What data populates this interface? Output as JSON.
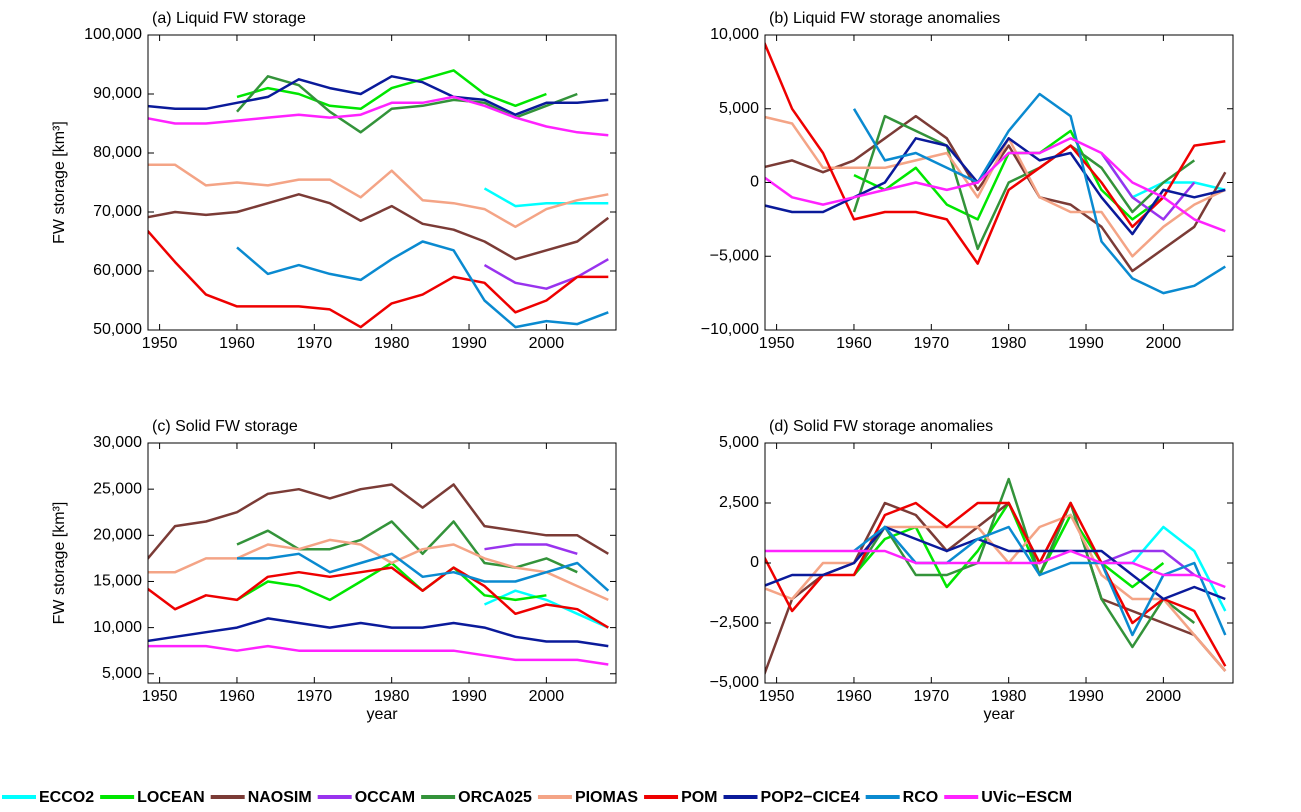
{
  "chart_data": [
    {
      "type": "line",
      "title": "(a) Liquid FW storage",
      "ylabel": "FW storage [km³]",
      "x": [
        1948,
        1952,
        1956,
        1960,
        1964,
        1968,
        1972,
        1976,
        1980,
        1984,
        1988,
        1992,
        1996,
        2000,
        2004,
        2008
      ],
      "xlim": [
        1948.5,
        2009
      ],
      "xticks": [
        1950,
        1960,
        1970,
        1980,
        1990,
        2000
      ],
      "ylim": [
        50000,
        100000
      ],
      "yticks": [
        {
          "value": 50000,
          "label": "50,000"
        },
        {
          "value": 60000,
          "label": "60,000"
        },
        {
          "value": 70000,
          "label": "70,000"
        },
        {
          "value": 80000,
          "label": "80,000"
        },
        {
          "value": 90000,
          "label": "90,000"
        },
        {
          "value": 100000,
          "label": "100,000"
        }
      ],
      "series": [
        {
          "values": [
            null,
            null,
            null,
            null,
            null,
            null,
            null,
            null,
            null,
            null,
            null,
            74000,
            71000,
            71500,
            71500,
            71500
          ]
        },
        {
          "values": [
            null,
            null,
            null,
            89500,
            91000,
            90000,
            88000,
            87500,
            91000,
            92500,
            94000,
            90000,
            88000,
            90000,
            null,
            null
          ]
        },
        {
          "values": [
            69000,
            70000,
            69500,
            70000,
            71500,
            73000,
            71500,
            68500,
            71000,
            68000,
            67000,
            65000,
            62000,
            63500,
            65000,
            69000
          ]
        },
        {
          "values": [
            null,
            null,
            null,
            null,
            null,
            null,
            null,
            null,
            null,
            null,
            null,
            61000,
            58000,
            57000,
            59000,
            62000
          ]
        },
        {
          "values": [
            null,
            null,
            null,
            87000,
            93000,
            91500,
            87000,
            83500,
            87500,
            88000,
            89000,
            88500,
            86000,
            88000,
            90000,
            null
          ]
        },
        {
          "values": [
            78000,
            78000,
            74500,
            75000,
            74500,
            75500,
            75500,
            72500,
            77000,
            72000,
            71500,
            70500,
            67500,
            70500,
            72000,
            73000
          ]
        },
        {
          "values": [
            67500,
            61500,
            56000,
            54000,
            54000,
            54000,
            53500,
            50500,
            54500,
            56000,
            59000,
            58000,
            53000,
            55000,
            59000,
            59000
          ]
        },
        {
          "values": [
            88000,
            87500,
            87500,
            88500,
            89500,
            92500,
            91000,
            90000,
            93000,
            92000,
            89500,
            89000,
            86500,
            88500,
            88500,
            89000
          ]
        },
        {
          "values": [
            null,
            null,
            null,
            64000,
            59500,
            61000,
            59500,
            58500,
            62000,
            65000,
            63500,
            55000,
            50500,
            51500,
            51000,
            53000
          ]
        },
        {
          "values": [
            86000,
            85000,
            85000,
            85500,
            86000,
            86500,
            86000,
            86500,
            88500,
            88500,
            89500,
            88000,
            86000,
            84500,
            83500,
            83000
          ]
        }
      ]
    },
    {
      "type": "line",
      "title": "(b) Liquid FW storage anomalies",
      "x": [
        1948,
        1952,
        1956,
        1960,
        1964,
        1968,
        1972,
        1976,
        1980,
        1984,
        1988,
        1992,
        1996,
        2000,
        2004,
        2008
      ],
      "xlim": [
        1948.5,
        2009
      ],
      "xticks": [
        1950,
        1960,
        1970,
        1980,
        1990,
        2000
      ],
      "ylim": [
        -10000,
        10000
      ],
      "yticks": [
        {
          "value": -10000,
          "label": "−10,000"
        },
        {
          "value": -5000,
          "label": "−5,000"
        },
        0,
        {
          "value": 5000,
          "label": "5,000"
        },
        {
          "value": 10000,
          "label": "10,000"
        }
      ],
      "series": [
        {
          "values": [
            null,
            null,
            null,
            null,
            null,
            null,
            null,
            null,
            null,
            null,
            null,
            2000,
            -1000,
            0,
            0,
            -500
          ]
        },
        {
          "values": [
            null,
            null,
            null,
            500,
            -500,
            1000,
            -1500,
            -2500,
            2000,
            2000,
            3500,
            -500,
            -2500,
            -1000,
            null,
            null
          ]
        },
        {
          "values": [
            1000,
            1500,
            700,
            1500,
            3000,
            4500,
            3000,
            -500,
            2500,
            -1000,
            -1500,
            -3000,
            -6000,
            -4500,
            -3000,
            700
          ]
        },
        {
          "values": [
            null,
            null,
            null,
            null,
            null,
            null,
            null,
            null,
            null,
            null,
            null,
            2000,
            -1000,
            -2500,
            0,
            null
          ]
        },
        {
          "values": [
            null,
            null,
            null,
            -2000,
            4500,
            3500,
            2500,
            -4500,
            0,
            1000,
            2500,
            1000,
            -2000,
            0,
            1500,
            null
          ]
        },
        {
          "values": [
            4500,
            4000,
            1000,
            1000,
            1000,
            1500,
            2000,
            -1000,
            3000,
            -1000,
            -2000,
            -2000,
            -5000,
            -3000,
            -1500,
            -500
          ]
        },
        {
          "values": [
            10000,
            5000,
            2000,
            -2500,
            -2000,
            -2000,
            -2500,
            -5500,
            -500,
            1000,
            2500,
            0,
            -3000,
            -1000,
            2500,
            2800
          ]
        },
        {
          "values": [
            -1500,
            -2000,
            -2000,
            -1000,
            0,
            3000,
            2500,
            0,
            3000,
            1500,
            2000,
            -1000,
            -3500,
            -500,
            -1000,
            -500
          ]
        },
        {
          "values": [
            null,
            null,
            null,
            5000,
            1500,
            2000,
            1000,
            0,
            3500,
            6000,
            4500,
            -4000,
            -6500,
            -7500,
            -7000,
            -5700
          ]
        },
        {
          "values": [
            500,
            -1000,
            -1500,
            -1000,
            -500,
            0,
            -500,
            0,
            2000,
            2000,
            3000,
            2000,
            0,
            -1000,
            -2500,
            -3300
          ]
        }
      ]
    },
    {
      "type": "line",
      "title": "(c) Solid FW storage",
      "ylabel": "FW storage [km³]",
      "xlabel": "year",
      "x": [
        1948,
        1952,
        1956,
        1960,
        1964,
        1968,
        1972,
        1976,
        1980,
        1984,
        1988,
        1992,
        1996,
        2000,
        2004,
        2008
      ],
      "xlim": [
        1948.5,
        2009
      ],
      "xticks": [
        1950,
        1960,
        1970,
        1980,
        1990,
        2000
      ],
      "ylim": [
        4000,
        30000
      ],
      "yticks": [
        {
          "value": 5000,
          "label": "5,000"
        },
        {
          "value": 10000,
          "label": "10,000"
        },
        {
          "value": 15000,
          "label": "15,000"
        },
        {
          "value": 20000,
          "label": "20,000"
        },
        {
          "value": 25000,
          "label": "25,000"
        },
        {
          "value": 30000,
          "label": "30,000"
        }
      ],
      "series": [
        {
          "values": [
            null,
            null,
            null,
            null,
            null,
            null,
            null,
            null,
            null,
            null,
            null,
            12500,
            14000,
            13000,
            11500,
            10000
          ]
        },
        {
          "values": [
            null,
            null,
            null,
            13000,
            15000,
            14500,
            13000,
            15000,
            17000,
            14000,
            16500,
            13500,
            13000,
            13500,
            null,
            null
          ]
        },
        {
          "values": [
            17000,
            21000,
            21500,
            22500,
            24500,
            25000,
            24000,
            25000,
            25500,
            23000,
            25500,
            21000,
            20500,
            20000,
            20000,
            18000
          ]
        },
        {
          "values": [
            null,
            null,
            null,
            null,
            null,
            null,
            null,
            null,
            null,
            null,
            null,
            18500,
            19000,
            19000,
            18000,
            null
          ]
        },
        {
          "values": [
            null,
            null,
            null,
            19000,
            20500,
            18500,
            18500,
            19500,
            21500,
            18000,
            21500,
            17000,
            16500,
            17500,
            16000,
            null
          ]
        },
        {
          "values": [
            16000,
            16000,
            17500,
            17500,
            19000,
            18500,
            19500,
            19000,
            17000,
            18500,
            19000,
            17500,
            16500,
            16000,
            14500,
            13000
          ]
        },
        {
          "values": [
            14500,
            12000,
            13500,
            13000,
            15500,
            16000,
            15500,
            16000,
            16500,
            14000,
            16500,
            14500,
            11500,
            12500,
            12000,
            10000
          ]
        },
        {
          "values": [
            8500,
            9000,
            9500,
            10000,
            11000,
            10500,
            10000,
            10500,
            10000,
            10000,
            10500,
            10000,
            9000,
            8500,
            8500,
            8000
          ]
        },
        {
          "values": [
            null,
            null,
            null,
            17500,
            17500,
            18000,
            16000,
            17000,
            18000,
            15500,
            16000,
            15000,
            15000,
            16000,
            17000,
            14000
          ]
        },
        {
          "values": [
            8000,
            8000,
            8000,
            7500,
            8000,
            7500,
            7500,
            7500,
            7500,
            7500,
            7500,
            7000,
            6500,
            6500,
            6500,
            6000
          ]
        }
      ]
    },
    {
      "type": "line",
      "title": "(d) Solid FW storage anomalies",
      "xlabel": "year",
      "x": [
        1948,
        1952,
        1956,
        1960,
        1964,
        1968,
        1972,
        1976,
        1980,
        1984,
        1988,
        1992,
        1996,
        2000,
        2004,
        2008
      ],
      "xlim": [
        1948.5,
        2009
      ],
      "xticks": [
        1950,
        1960,
        1970,
        1980,
        1990,
        2000
      ],
      "ylim": [
        -5000,
        5000
      ],
      "yticks": [
        {
          "value": -5000,
          "label": "−5,000"
        },
        {
          "value": -2500,
          "label": "−2,500"
        },
        0,
        {
          "value": 2500,
          "label": "2,500"
        },
        {
          "value": 5000,
          "label": "5,000"
        }
      ],
      "series": [
        {
          "values": [
            null,
            null,
            null,
            null,
            null,
            null,
            null,
            null,
            null,
            null,
            null,
            0,
            0,
            1500,
            500,
            -2000
          ]
        },
        {
          "values": [
            null,
            null,
            null,
            -500,
            1000,
            1500,
            -1000,
            500,
            2500,
            -500,
            2000,
            0,
            -1000,
            0,
            null,
            null
          ]
        },
        {
          "values": [
            -5000,
            -1500,
            -500,
            0,
            2500,
            2000,
            500,
            1500,
            2500,
            0,
            2500,
            -1500,
            -2000,
            -2500,
            -3000,
            -4500
          ]
        },
        {
          "values": [
            null,
            null,
            null,
            null,
            null,
            null,
            null,
            null,
            null,
            null,
            null,
            0,
            500,
            500,
            -500,
            null
          ]
        },
        {
          "values": [
            null,
            null,
            null,
            -500,
            1500,
            -500,
            -500,
            0,
            3500,
            -500,
            2500,
            -1500,
            -3500,
            -1500,
            -2500,
            null
          ]
        },
        {
          "values": [
            -1000,
            -1500,
            0,
            0,
            1500,
            1500,
            1500,
            1500,
            0,
            1500,
            2000,
            -500,
            -1500,
            -1500,
            -3000,
            -4500
          ]
        },
        {
          "values": [
            500,
            -2000,
            -500,
            -500,
            2000,
            2500,
            1500,
            2500,
            2500,
            0,
            2500,
            0,
            -2500,
            -1500,
            -2000,
            -4300
          ]
        },
        {
          "values": [
            -1000,
            -500,
            -500,
            0,
            1500,
            1000,
            500,
            1000,
            500,
            500,
            500,
            500,
            -500,
            -1500,
            -1000,
            -1500
          ]
        },
        {
          "values": [
            null,
            null,
            null,
            500,
            1500,
            0,
            0,
            1000,
            1500,
            -500,
            0,
            0,
            -3000,
            -500,
            0,
            -3000
          ]
        },
        {
          "values": [
            500,
            500,
            500,
            500,
            500,
            0,
            0,
            0,
            0,
            0,
            500,
            0,
            0,
            -500,
            -500,
            -1000
          ]
        }
      ]
    }
  ],
  "legend": [
    {
      "name": "ECCO2",
      "color": "#00ffff"
    },
    {
      "name": "LOCEAN",
      "color": "#00e600"
    },
    {
      "name": "NAOSIM",
      "color": "#7b3b36"
    },
    {
      "name": "OCCAM",
      "color": "#9933ee"
    },
    {
      "name": "ORCA025",
      "color": "#33933a"
    },
    {
      "name": "PIOMAS",
      "color": "#f4a486"
    },
    {
      "name": "POM",
      "color": "#ee0000"
    },
    {
      "name": "POP2−CICE4",
      "color": "#0a1a9a"
    },
    {
      "name": "RCO",
      "color": "#0a8ad0"
    },
    {
      "name": "UVic−ESCM",
      "color": "#ff22ff"
    }
  ]
}
